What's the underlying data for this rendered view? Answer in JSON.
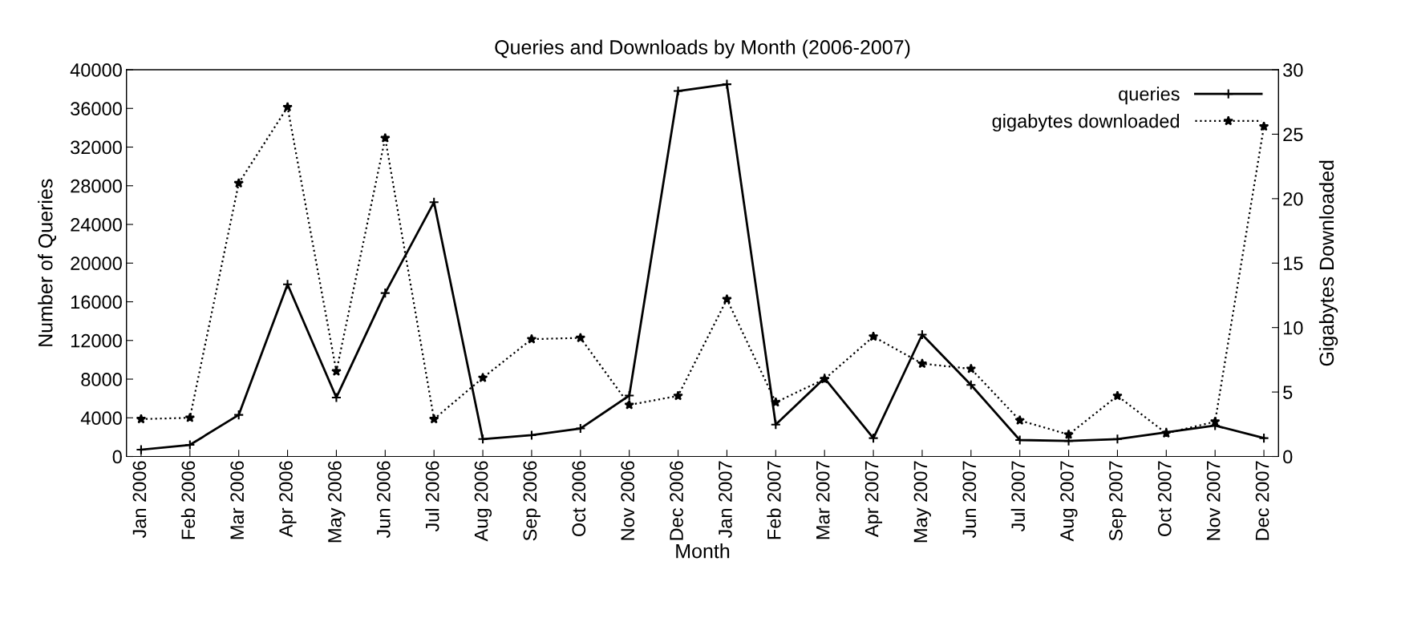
{
  "chart_data": {
    "type": "line",
    "title": "Queries and Downloads by Month (2006-2007)",
    "xlabel": "Month",
    "ylabel": "Number of Queries",
    "y2label": "Gigabytes Downloaded",
    "categories": [
      "Jan 2006",
      "Feb 2006",
      "Mar 2006",
      "Apr 2006",
      "May 2006",
      "Jun 2006",
      "Jul 2006",
      "Aug 2006",
      "Sep 2006",
      "Oct 2006",
      "Nov 2006",
      "Dec 2006",
      "Jan 2007",
      "Feb 2007",
      "Mar 2007",
      "Apr 2007",
      "May 2007",
      "Jun 2007",
      "Jul 2007",
      "Aug 2007",
      "Sep 2007",
      "Oct 2007",
      "Nov 2007",
      "Dec 2007"
    ],
    "series": [
      {
        "name": "queries",
        "color": "#000000",
        "line_style": "solid",
        "marker": "cross",
        "values": [
          700,
          1200,
          4300,
          17800,
          6100,
          16900,
          26300,
          1800,
          2200,
          2900,
          6300,
          37800,
          38500,
          3300,
          8100,
          1900,
          12600,
          7400,
          1700,
          1600,
          1800,
          2500,
          3200,
          1900
        ]
      },
      {
        "name": "gigabytes downloaded",
        "color": "#000000",
        "line_style": "dotted",
        "marker": "star",
        "axis": "y2",
        "values": [
          2.9,
          3.0,
          21.2,
          27.1,
          6.6,
          24.7,
          2.9,
          6.1,
          9.1,
          9.2,
          4.0,
          4.7,
          12.2,
          4.2,
          6.0,
          9.3,
          7.2,
          6.8,
          2.8,
          1.7,
          4.7,
          1.8,
          2.7,
          25.6
        ]
      }
    ],
    "ylim": [
      0,
      40000
    ],
    "yticks": [
      0,
      4000,
      8000,
      12000,
      16000,
      20000,
      24000,
      28000,
      32000,
      36000,
      40000
    ],
    "y2lim": [
      0,
      30
    ],
    "y2ticks": [
      0,
      5,
      10,
      15,
      20,
      25,
      30
    ],
    "legend": "top right",
    "grid": false
  }
}
